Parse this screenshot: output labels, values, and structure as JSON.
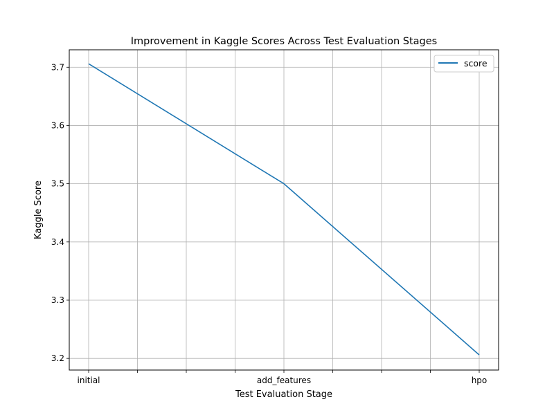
{
  "chart_data": {
    "type": "line",
    "title": "Improvement in Kaggle Scores Across Test Evaluation Stages",
    "xlabel": "Test Evaluation Stage",
    "ylabel": "Kaggle Score",
    "categories": [
      "initial",
      "add_features",
      "hpo"
    ],
    "x_tick_labels": [
      "initial",
      "add_features",
      "hpo"
    ],
    "series": [
      {
        "name": "score",
        "values": [
          3.706,
          3.5,
          3.206
        ],
        "color": "#1f77b4"
      }
    ],
    "ylim": [
      3.18,
      3.73
    ],
    "y_ticks": [
      "3.2",
      "3.3",
      "3.4",
      "3.5",
      "3.6",
      "3.7"
    ],
    "grid": true,
    "legend_position": "top-right",
    "minor_x_ticks": true
  }
}
